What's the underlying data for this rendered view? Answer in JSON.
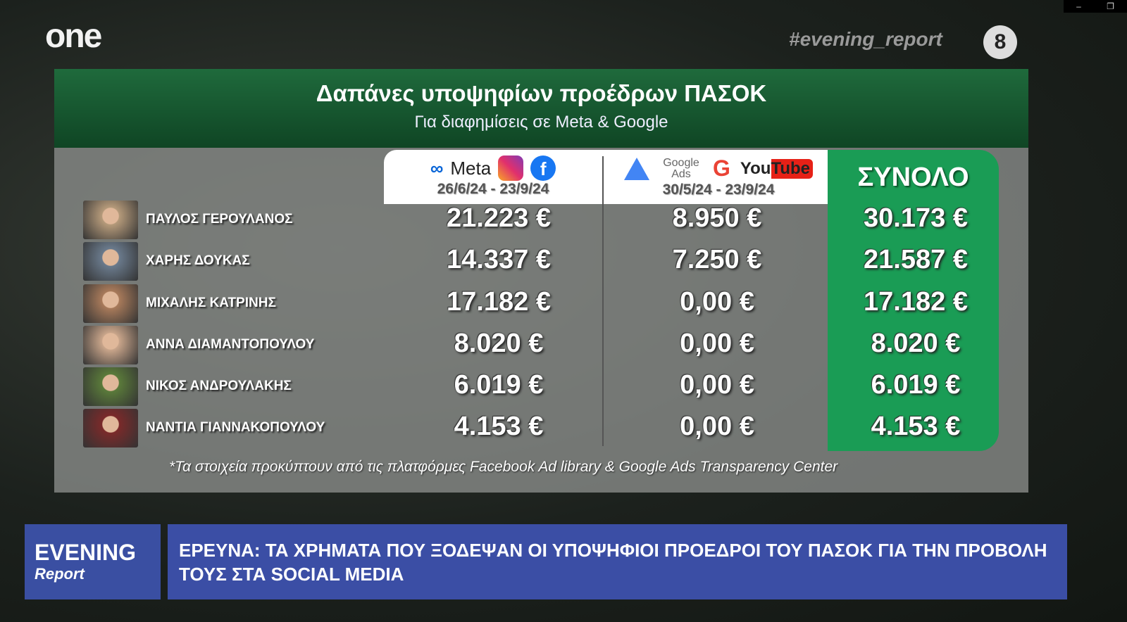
{
  "window_controls": {
    "minimize": "–",
    "restore": "❐"
  },
  "channel": {
    "logo": "one",
    "hashtag": "#evening_report",
    "badge": "8"
  },
  "panel": {
    "title": "Δαπάνες υποψηφίων προέδρων ΠΑΣΟΚ",
    "subtitle": "Για διαφημίσεις σε Meta & Google",
    "columns": [
      {
        "brand": "Meta",
        "icons": [
          "meta-icon",
          "instagram-icon",
          "facebook-icon"
        ],
        "date": "26/6/24 - 23/9/24"
      },
      {
        "brand": "Google Ads",
        "brand2": "YouTube",
        "icons": [
          "google-ads-icon",
          "google-icon",
          "youtube-icon"
        ],
        "date": "30/5/24 - 23/9/24"
      },
      {
        "label": "ΣΥΝΟΛΟ"
      }
    ],
    "rows": [
      {
        "name": "ΠΑΥΛΟΣ ΓΕΡΟΥΛΑΝΟΣ",
        "meta": "21.223 €",
        "google": "8.950 €",
        "total": "30.173 €"
      },
      {
        "name": "ΧΑΡΗΣ ΔΟΥΚΑΣ",
        "meta": "14.337 €",
        "google": "7.250 €",
        "total": "21.587 €"
      },
      {
        "name": "ΜΙΧΑΛΗΣ ΚΑΤΡΙΝΗΣ",
        "meta": "17.182 €",
        "google": "0,00 €",
        "total": "17.182 €"
      },
      {
        "name": "ΑΝΝΑ ΔΙΑΜΑΝΤΟΠΟΥΛΟΥ",
        "meta": "8.020 €",
        "google": "0,00 €",
        "total": "8.020 €"
      },
      {
        "name": "ΝΙΚΟΣ ΑΝΔΡΟΥΛΑΚΗΣ",
        "meta": "6.019 €",
        "google": "0,00 €",
        "total": "6.019 €"
      },
      {
        "name": "ΝΑΝΤΙΑ ΓΙΑΝΝΑΚΟΠΟΥΛΟΥ",
        "meta": "4.153 €",
        "google": "0,00 €",
        "total": "4.153 €"
      }
    ],
    "footnote": "*Τα στοιχεία προκύπτουν από τις πλατφόρμες Facebook Ad library & Google Ads Transparency Center"
  },
  "show": {
    "name_top": "EVENING",
    "name_bottom": "Report"
  },
  "ticker": "ΕΡΕΥΝΑ: ΤΑ ΧΡΗΜΑΤΑ ΠΟΥ ΞΟΔΕΨΑΝ ΟΙ ΥΠΟΨΗΦΙΟΙ ΠΡΟΕΔΡΟΙ ΤΟΥ ΠΑΣΟΚ ΓΙΑ ΤΗΝ ΠΡΟΒΟΛΗ ΤΟΥΣ ΣΤΑ SOCIAL MEDIA",
  "colors": {
    "header_green": "#1f6a3c",
    "total_green": "#1a9c55",
    "bar_blue": "#3b4ea5"
  }
}
